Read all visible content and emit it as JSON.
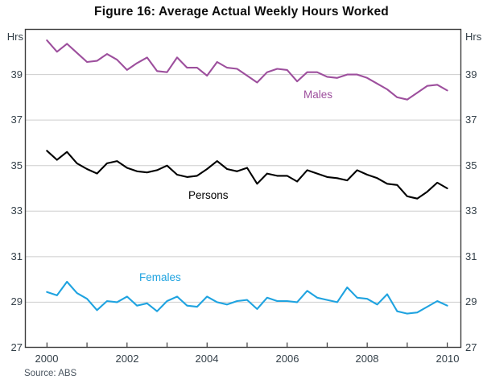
{
  "title": "Figure 16: Average Actual Weekly Hours Worked",
  "source": "Source: ABS",
  "axis": {
    "unit": "Hrs"
  },
  "colors": {
    "males": "#9D4F9D",
    "persons": "#000000",
    "females": "#1FA3E0",
    "grid": "#cdcdcd",
    "frame": "#3d3d3d",
    "text": "#333f48"
  },
  "chart_data": {
    "type": "line",
    "title": "Figure 16: Average Actual Weekly Hours Worked",
    "ylabel": "Hrs",
    "ylim": [
      27,
      41
    ],
    "yticks": [
      27,
      29,
      31,
      33,
      35,
      37,
      39
    ],
    "xlim": [
      1999.45,
      2010.35
    ],
    "x_ticks": [
      2000,
      2001,
      2002,
      2003,
      2004,
      2005,
      2006,
      2007,
      2008,
      2009,
      2010
    ],
    "x_tick_labels": [
      "2000",
      "2002",
      "2004",
      "2006",
      "2008",
      "2010"
    ],
    "x_start": 2000.0,
    "x_step": 0.25,
    "grid": true,
    "legend_position": "inline-labels",
    "series": [
      {
        "name": "Males",
        "color": "#9D4F9D",
        "values": [
          40.5,
          40.0,
          40.35,
          39.95,
          39.55,
          39.6,
          39.9,
          39.65,
          39.2,
          39.5,
          39.75,
          39.15,
          39.1,
          39.75,
          39.3,
          39.3,
          38.95,
          39.55,
          39.3,
          39.25,
          38.95,
          38.65,
          39.1,
          39.25,
          39.2,
          38.7,
          39.1,
          39.1,
          38.9,
          38.85,
          39.0,
          39.0,
          38.85,
          38.6,
          38.35,
          38.0,
          37.9,
          38.2,
          38.5,
          38.55,
          38.3
        ]
      },
      {
        "name": "Persons",
        "color": "#000000",
        "values": [
          35.65,
          35.25,
          35.6,
          35.1,
          34.85,
          34.65,
          35.1,
          35.2,
          34.9,
          34.75,
          34.7,
          34.8,
          35.0,
          34.6,
          34.5,
          34.55,
          34.85,
          35.2,
          34.85,
          34.75,
          34.9,
          34.2,
          34.65,
          34.55,
          34.55,
          34.3,
          34.8,
          34.65,
          34.5,
          34.45,
          34.35,
          34.8,
          34.6,
          34.45,
          34.2,
          34.15,
          33.65,
          33.55,
          33.85,
          34.25,
          34.0
        ]
      },
      {
        "name": "Females",
        "color": "#1FA3E0",
        "values": [
          29.45,
          29.3,
          29.9,
          29.4,
          29.15,
          28.65,
          29.05,
          29.0,
          29.25,
          28.85,
          28.95,
          28.6,
          29.05,
          29.25,
          28.85,
          28.8,
          29.25,
          29.0,
          28.9,
          29.05,
          29.1,
          28.7,
          29.2,
          29.05,
          29.05,
          29.0,
          29.5,
          29.2,
          29.1,
          29.0,
          29.65,
          29.2,
          29.15,
          28.9,
          29.35,
          28.6,
          28.5,
          28.55,
          28.8,
          29.05,
          28.85
        ]
      }
    ]
  }
}
